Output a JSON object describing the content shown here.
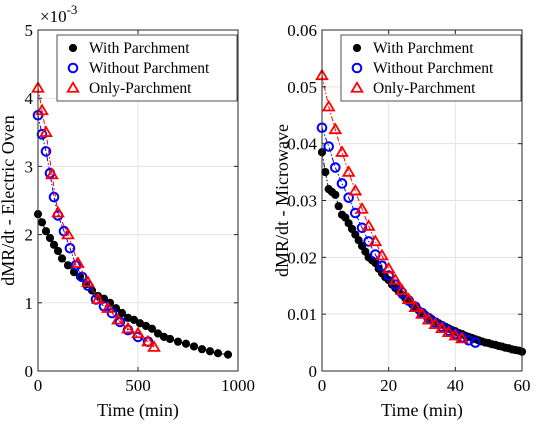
{
  "chart_data": [
    {
      "type": "scatter",
      "xlabel": "Time (min)",
      "ylabel": "dMR/dt - Electric Oven",
      "exponent_label": "×10",
      "exponent_power": "-3",
      "xlim": [
        0,
        1000
      ],
      "ylim": [
        0,
        5
      ],
      "xticks": [
        0,
        500,
        1000
      ],
      "yticks": [
        0,
        1,
        2,
        3,
        4,
        5
      ],
      "grid": true,
      "legend_position": "top-right",
      "series": [
        {
          "name": "With Parchment",
          "marker": "filled-circle",
          "color": "#000000",
          "x": [
            0,
            20,
            40,
            60,
            80,
            100,
            120,
            150,
            180,
            210,
            240,
            270,
            300,
            330,
            360,
            390,
            420,
            450,
            480,
            510,
            540,
            570,
            600,
            630,
            660,
            700,
            740,
            780,
            820,
            860,
            900,
            950
          ],
          "y": [
            2.3,
            2.18,
            2.05,
            1.95,
            1.85,
            1.76,
            1.65,
            1.55,
            1.45,
            1.38,
            1.27,
            1.18,
            1.1,
            1.06,
            1.0,
            0.92,
            0.85,
            0.78,
            0.75,
            0.7,
            0.66,
            0.62,
            0.55,
            0.5,
            0.47,
            0.43,
            0.4,
            0.36,
            0.32,
            0.29,
            0.26,
            0.24
          ]
        },
        {
          "name": "Without Parchment",
          "marker": "open-circle",
          "color": "#0000ff",
          "x": [
            0,
            20,
            40,
            60,
            80,
            100,
            130,
            160,
            190,
            220,
            250,
            290,
            330,
            370,
            410,
            450,
            500,
            550
          ],
          "y": [
            3.75,
            3.47,
            3.22,
            2.9,
            2.55,
            2.28,
            2.05,
            1.8,
            1.55,
            1.38,
            1.25,
            1.05,
            0.95,
            0.85,
            0.72,
            0.6,
            0.5,
            0.43
          ]
        },
        {
          "name": "Only-Parchment",
          "marker": "open-triangle",
          "color": "#ff0000",
          "x": [
            0,
            20,
            40,
            70,
            100,
            150,
            200,
            250,
            300,
            350,
            400,
            450,
            500,
            550,
            580
          ],
          "y": [
            4.15,
            3.82,
            3.5,
            2.88,
            2.32,
            2.0,
            1.58,
            1.3,
            1.05,
            0.92,
            0.75,
            0.62,
            0.55,
            0.43,
            0.35
          ]
        }
      ]
    },
    {
      "type": "scatter",
      "xlabel": "Time (min)",
      "ylabel": "dMR/dt - Microwave",
      "xlim": [
        0,
        60
      ],
      "ylim": [
        0,
        0.06
      ],
      "xticks": [
        0,
        20,
        40,
        60
      ],
      "yticks": [
        0,
        0.01,
        0.02,
        0.03,
        0.04,
        0.05,
        0.06
      ],
      "grid": true,
      "legend_position": "top-right",
      "series": [
        {
          "name": "With Parchment",
          "marker": "filled-circle",
          "color": "#000000",
          "x": [
            0,
            1,
            2,
            3,
            4,
            5,
            6,
            7,
            8,
            9,
            10,
            11,
            12,
            13,
            14,
            15,
            16,
            17,
            18,
            19,
            20,
            21,
            22,
            23,
            24,
            25,
            26,
            27,
            28,
            29,
            30,
            31,
            32,
            33,
            34,
            35,
            36,
            37,
            38,
            39,
            40,
            41,
            42,
            43,
            44,
            45,
            46,
            47,
            48,
            49,
            50,
            51,
            52,
            53,
            54,
            55,
            56,
            57,
            58,
            59,
            60
          ],
          "y": [
            0.0385,
            0.035,
            0.032,
            0.0315,
            0.031,
            0.029,
            0.0275,
            0.027,
            0.026,
            0.025,
            0.024,
            0.023,
            0.022,
            0.021,
            0.02,
            0.0195,
            0.019,
            0.018,
            0.0172,
            0.0165,
            0.016,
            0.0152,
            0.0146,
            0.014,
            0.0134,
            0.0128,
            0.0122,
            0.0117,
            0.0112,
            0.0107,
            0.0103,
            0.0099,
            0.0095,
            0.0091,
            0.0087,
            0.0084,
            0.0081,
            0.0078,
            0.0075,
            0.0072,
            0.007,
            0.0067,
            0.0065,
            0.0062,
            0.006,
            0.0058,
            0.0056,
            0.0054,
            0.0052,
            0.005,
            0.0049,
            0.0047,
            0.0046,
            0.0044,
            0.0043,
            0.0041,
            0.004,
            0.0038,
            0.0037,
            0.0036,
            0.0034
          ]
        },
        {
          "name": "Without Parchment",
          "marker": "open-circle",
          "color": "#0000ff",
          "x": [
            0,
            2,
            4,
            6,
            8,
            10,
            12,
            14,
            16,
            18,
            20,
            22,
            24,
            26,
            28,
            30,
            32,
            34,
            36,
            38,
            40,
            42,
            44,
            46
          ],
          "y": [
            0.0428,
            0.0395,
            0.0358,
            0.033,
            0.0305,
            0.0278,
            0.0252,
            0.0228,
            0.0205,
            0.0185,
            0.0168,
            0.0152,
            0.0138,
            0.0124,
            0.0113,
            0.0102,
            0.0093,
            0.0085,
            0.0078,
            0.0071,
            0.0065,
            0.0059,
            0.0054,
            0.005
          ]
        },
        {
          "name": "Only-Parchment",
          "marker": "open-triangle",
          "color": "#ff0000",
          "x": [
            0,
            2,
            4,
            6,
            8,
            10,
            12,
            14,
            16,
            18,
            20,
            22,
            24,
            26,
            28,
            30,
            32,
            34,
            36,
            38,
            40,
            42
          ],
          "y": [
            0.052,
            0.0465,
            0.0425,
            0.0385,
            0.035,
            0.0317,
            0.0285,
            0.0255,
            0.0228,
            0.0203,
            0.018,
            0.016,
            0.0142,
            0.0126,
            0.0112,
            0.01,
            0.009,
            0.0082,
            0.0075,
            0.0068,
            0.0062,
            0.0057
          ]
        }
      ]
    }
  ]
}
